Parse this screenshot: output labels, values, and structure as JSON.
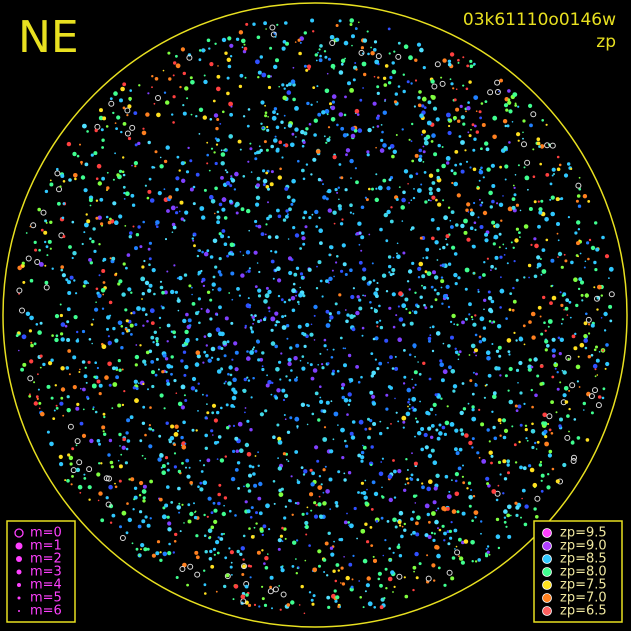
{
  "header": {
    "direction": "NE",
    "frame_id": "03k61110o0146w",
    "metric": "zp"
  },
  "magnitude_legend": [
    "m=0",
    "m=1",
    "m=2",
    "m=3",
    "m=4",
    "m=5",
    "m=6"
  ],
  "zp_legend": [
    {
      "label": "zp=9.5",
      "color": "#ff40ff"
    },
    {
      "label": "zp=9.0",
      "color": "#b040ff"
    },
    {
      "label": "zp=8.5",
      "color": "#30c8ff"
    },
    {
      "label": "zp=8.0",
      "color": "#40ff90"
    },
    {
      "label": "zp=7.5",
      "color": "#ffe020"
    },
    {
      "label": "zp=7.0",
      "color": "#ff8020"
    },
    {
      "label": "zp=6.5",
      "color": "#ff6060"
    }
  ]
}
